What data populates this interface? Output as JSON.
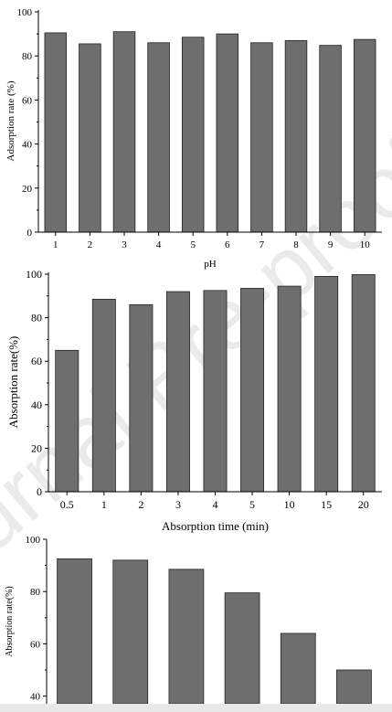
{
  "watermark": "Journal Pre-proofs",
  "chart_data": [
    {
      "type": "bar",
      "categories": [
        "1",
        "2",
        "3",
        "4",
        "5",
        "6",
        "7",
        "8",
        "9",
        "10"
      ],
      "values": [
        90.5,
        85.5,
        91,
        86,
        88.5,
        90,
        86,
        87,
        84.8,
        87.5
      ],
      "title": "",
      "xlabel": "pH",
      "ylabel": "Adsorption rate (%)",
      "ylim": [
        0,
        100
      ],
      "yticks": [
        "0",
        "20",
        "40",
        "60",
        "80",
        "100"
      ],
      "grid": false,
      "bar_color": "#6e6e6e"
    },
    {
      "type": "bar",
      "categories": [
        "0.5",
        "1",
        "2",
        "3",
        "4",
        "5",
        "10",
        "15",
        "20"
      ],
      "values": [
        65,
        88.5,
        86,
        92,
        92.5,
        93.5,
        94.5,
        99,
        99.8
      ],
      "title": "",
      "xlabel": "Absorption time (min)",
      "ylabel": "Absorption rate(%)",
      "ylim": [
        0,
        100
      ],
      "yticks": [
        "0",
        "20",
        "40",
        "60",
        "80",
        "100"
      ],
      "grid": false,
      "bar_color": "#6e6e6e"
    },
    {
      "type": "bar",
      "categories": [
        "",
        "",
        "",
        "",
        "",
        ""
      ],
      "values": [
        92.5,
        92,
        88.5,
        79.5,
        64,
        50
      ],
      "title": "",
      "xlabel": "",
      "ylabel": "Absorption rate(%)",
      "ylim": [
        0,
        100
      ],
      "yticks": [
        "40",
        "60",
        "80",
        "100"
      ],
      "grid": false,
      "bar_color": "#6e6e6e"
    }
  ]
}
